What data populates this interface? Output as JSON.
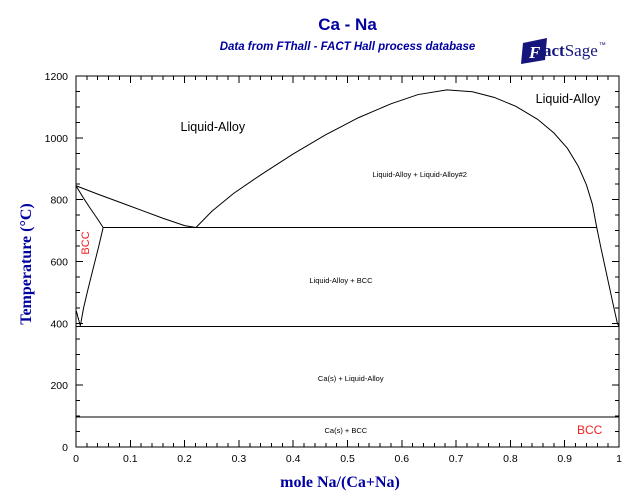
{
  "header": {
    "title": "Ca - Na",
    "subtitle": "Data from FThall - FACT Hall process database",
    "logo": {
      "f": "F",
      "act": "act",
      "sage": "Sage",
      "tm": "™",
      "color": "#15157b"
    }
  },
  "colors": {
    "accent_navy": "#0000A0",
    "label_red": "#EE2222",
    "curve_black": "#000000"
  },
  "chart_data": {
    "type": "line",
    "title": "Ca - Na",
    "subtitle": "Data from FThall - FACT Hall process database",
    "xlabel": "mole Na/(Ca+Na)",
    "ylabel": "Temperature (°C)",
    "xlim": [
      0,
      1
    ],
    "ylim": [
      0,
      1200
    ],
    "grid": false,
    "x_major_ticks": [
      0,
      0.1,
      0.2,
      0.3,
      0.4,
      0.5,
      0.6,
      0.7,
      0.8,
      0.9,
      1
    ],
    "x_tick_labels": [
      "0",
      "0.1",
      "0.2",
      "0.3",
      "0.4",
      "0.5",
      "0.6",
      "0.7",
      "0.8",
      "0.9",
      "1"
    ],
    "x_minor_step": 0.02,
    "y_major_ticks": [
      0,
      200,
      400,
      600,
      800,
      1000,
      1200
    ],
    "y_tick_labels": [
      "0",
      "200",
      "400",
      "600",
      "800",
      "1000",
      "1200"
    ],
    "y_minor_step": 50,
    "curves": [
      {
        "name": "ca-liquidus",
        "points": [
          [
            0,
            845
          ],
          [
            0.04,
            818
          ],
          [
            0.08,
            792
          ],
          [
            0.12,
            766
          ],
          [
            0.16,
            740
          ],
          [
            0.2,
            716
          ],
          [
            0.221,
            710
          ]
        ]
      },
      {
        "name": "bcc-liquid-boundary",
        "points": [
          [
            0,
            845
          ],
          [
            0.012,
            810
          ],
          [
            0.025,
            775
          ],
          [
            0.038,
            742
          ],
          [
            0.05,
            710
          ]
        ]
      },
      {
        "name": "bcc-solvus",
        "points": [
          [
            0.05,
            710
          ],
          [
            0.042,
            650
          ],
          [
            0.032,
            580
          ],
          [
            0.022,
            510
          ],
          [
            0.014,
            450
          ],
          [
            0.008,
            392
          ]
        ]
      },
      {
        "name": "fcc-bcc-boundary",
        "points": [
          [
            0,
            443
          ],
          [
            0.008,
            392
          ]
        ]
      },
      {
        "name": "monotectic-line-710",
        "points": [
          [
            0.05,
            710
          ],
          [
            0.959,
            710
          ]
        ]
      },
      {
        "name": "liquid-miscibility-gap-binodal",
        "points": [
          [
            0.221,
            710
          ],
          [
            0.25,
            762
          ],
          [
            0.29,
            820
          ],
          [
            0.34,
            880
          ],
          [
            0.4,
            948
          ],
          [
            0.46,
            1010
          ],
          [
            0.52,
            1065
          ],
          [
            0.58,
            1110
          ],
          [
            0.63,
            1140
          ],
          [
            0.683,
            1155
          ],
          [
            0.73,
            1149
          ],
          [
            0.77,
            1131
          ],
          [
            0.81,
            1102
          ],
          [
            0.85,
            1060
          ],
          [
            0.88,
            1016
          ],
          [
            0.905,
            966
          ],
          [
            0.925,
            908
          ],
          [
            0.94,
            848
          ],
          [
            0.951,
            785
          ],
          [
            0.959,
            710
          ]
        ]
      },
      {
        "name": "na-liquidus",
        "points": [
          [
            0.959,
            710
          ],
          [
            0.966,
            650
          ],
          [
            0.974,
            585
          ],
          [
            0.982,
            520
          ],
          [
            0.99,
            455
          ],
          [
            0.997,
            400
          ],
          [
            1.0,
            390
          ]
        ]
      },
      {
        "name": "bcc-decomposition-line-390",
        "points": [
          [
            0,
            390
          ],
          [
            1,
            390
          ]
        ]
      },
      {
        "name": "na-melting-line-97",
        "points": [
          [
            0,
            97
          ],
          [
            1,
            97
          ]
        ]
      }
    ],
    "region_labels": [
      {
        "name": "liquid-alloy-left",
        "text": "Liquid-Alloy",
        "x": 0.252,
        "T": 1022,
        "size": 12.5,
        "color": "#000000"
      },
      {
        "name": "liquid-alloy-right",
        "text": "Liquid-Alloy",
        "x": 0.906,
        "T": 1113,
        "size": 12.5,
        "color": "#000000"
      },
      {
        "name": "two-liquid-region",
        "text": "Liquid-Alloy + Liquid-Alloy#2",
        "x": 0.633,
        "T": 873,
        "size": 7.5,
        "color": "#000000"
      },
      {
        "name": "liquid-bcc-region",
        "text": "Liquid-Alloy + BCC",
        "x": 0.488,
        "T": 530,
        "size": 7.5,
        "color": "#000000"
      },
      {
        "name": "ca-liquid-region",
        "text": "Ca(s) + Liquid-Alloy",
        "x": 0.506,
        "T": 213,
        "size": 7.5,
        "color": "#000000"
      },
      {
        "name": "ca-bcc-region",
        "text": "Ca(s) + BCC",
        "x": 0.497,
        "T": 45,
        "size": 7.5,
        "color": "#000000"
      },
      {
        "name": "bcc-ca-phase",
        "text": "BCC",
        "x": 0.024,
        "T": 660,
        "size": 11,
        "color": "#EE2222",
        "rotate": -90
      },
      {
        "name": "bcc-na-phase",
        "text": "BCC",
        "x": 0.946,
        "T": 42,
        "size": 12,
        "color": "#EE2222"
      }
    ]
  }
}
